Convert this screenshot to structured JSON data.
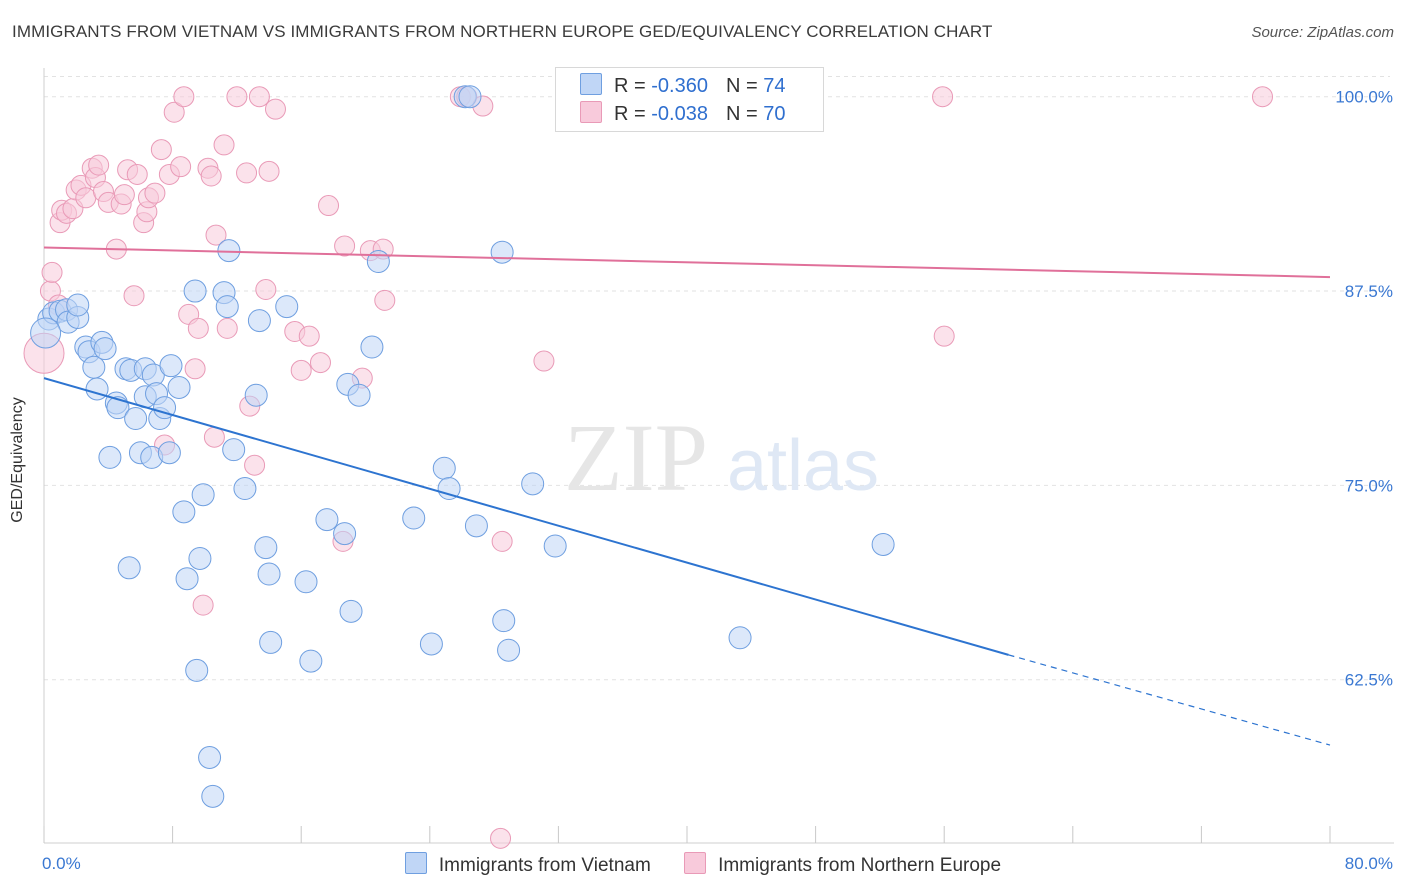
{
  "title": "IMMIGRANTS FROM VIETNAM VS IMMIGRANTS FROM NORTHERN EUROPE GED/EQUIVALENCY CORRELATION CHART",
  "source": "Source: ZipAtlas.com",
  "watermark": {
    "zip": "ZIP",
    "atlas": "atlas"
  },
  "colors": {
    "blue": "#2d74d0",
    "blue_fill": "#c0d6f6",
    "blue_stroke": "#6f9fe0",
    "pink": "#e0709a",
    "pink_fill": "#f8cadb",
    "pink_stroke": "#e99ab7",
    "tick_label": "#3a78d2",
    "grid": "#e2e2e2"
  },
  "legend": {
    "rows": [
      {
        "r_label": "R = ",
        "r_value": "-0.360",
        "n_label": "N = ",
        "n_value": "74",
        "color": "blue"
      },
      {
        "r_label": "R = ",
        "r_value": "-0.038",
        "n_label": "N = ",
        "n_value": "70",
        "color": "pink"
      }
    ]
  },
  "chart_data": {
    "type": "scatter",
    "title": "IMMIGRANTS FROM VIETNAM VS IMMIGRANTS FROM NORTHERN EUROPE GED/EQUIVALENCY CORRELATION CHART",
    "xlabel": "",
    "ylabel": "GED/Equivalency",
    "xlim": [
      0,
      80
    ],
    "ylim": [
      52,
      101.3
    ],
    "x_tick_labels": [
      "0.0%",
      "80.0%"
    ],
    "y_ticks": [
      62.5,
      75.0,
      87.5,
      100.0
    ],
    "y_tick_labels": [
      "62.5%",
      "75.0%",
      "87.5%",
      "100.0%"
    ],
    "grid": true,
    "legend_position": "top-center",
    "series": [
      {
        "name": "Immigrants from Vietnam",
        "color": "blue",
        "trend": {
          "x": [
            0,
            60
          ],
          "y": [
            81.9,
            64.1
          ],
          "dashed_to": [
            80,
            58.3
          ]
        },
        "points": [
          [
            0.3,
            85.7
          ],
          [
            0.6,
            86.1
          ],
          [
            1.0,
            86.2
          ],
          [
            1.4,
            86.3
          ],
          [
            1.5,
            85.5
          ],
          [
            2.1,
            85.8
          ],
          [
            2.1,
            86.6
          ],
          [
            2.6,
            83.9
          ],
          [
            2.8,
            83.6
          ],
          [
            3.1,
            82.6
          ],
          [
            3.3,
            81.2
          ],
          [
            3.6,
            84.2
          ],
          [
            3.8,
            83.8
          ],
          [
            4.1,
            76.8
          ],
          [
            4.5,
            80.3
          ],
          [
            4.6,
            80.0
          ],
          [
            5.1,
            82.5
          ],
          [
            5.4,
            82.4
          ],
          [
            5.3,
            69.7
          ],
          [
            5.7,
            79.3
          ],
          [
            6.0,
            77.1
          ],
          [
            6.3,
            80.7
          ],
          [
            6.3,
            82.5
          ],
          [
            6.7,
            76.8
          ],
          [
            6.8,
            82.1
          ],
          [
            7.0,
            80.9
          ],
          [
            7.2,
            79.3
          ],
          [
            7.5,
            80.0
          ],
          [
            7.8,
            77.1
          ],
          [
            7.9,
            82.7
          ],
          [
            8.4,
            81.3
          ],
          [
            8.7,
            73.3
          ],
          [
            8.9,
            69.0
          ],
          [
            9.4,
            87.5
          ],
          [
            9.5,
            63.1
          ],
          [
            9.7,
            70.3
          ],
          [
            9.9,
            74.4
          ],
          [
            10.3,
            57.5
          ],
          [
            10.5,
            55.0
          ],
          [
            11.2,
            87.4
          ],
          [
            11.4,
            86.5
          ],
          [
            11.5,
            90.1
          ],
          [
            11.8,
            77.3
          ],
          [
            12.5,
            74.8
          ],
          [
            13.2,
            80.8
          ],
          [
            13.4,
            85.6
          ],
          [
            13.8,
            71.0
          ],
          [
            14.0,
            69.3
          ],
          [
            14.1,
            64.9
          ],
          [
            15.1,
            86.5
          ],
          [
            16.3,
            68.8
          ],
          [
            16.6,
            63.7
          ],
          [
            17.6,
            72.8
          ],
          [
            18.7,
            71.9
          ],
          [
            18.9,
            81.5
          ],
          [
            19.1,
            66.9
          ],
          [
            19.6,
            80.8
          ],
          [
            20.4,
            83.9
          ],
          [
            20.8,
            89.4
          ],
          [
            23.0,
            72.9
          ],
          [
            24.1,
            64.8
          ],
          [
            24.9,
            76.1
          ],
          [
            25.2,
            74.8
          ],
          [
            26.2,
            100.0
          ],
          [
            26.5,
            100.0
          ],
          [
            26.9,
            72.4
          ],
          [
            28.5,
            90.0
          ],
          [
            28.6,
            66.3
          ],
          [
            28.9,
            64.4
          ],
          [
            30.4,
            75.1
          ],
          [
            31.8,
            71.1
          ],
          [
            43.3,
            65.2
          ],
          [
            52.2,
            71.2
          ],
          [
            0.1,
            84.8
          ]
        ],
        "radii": [
          11,
          11,
          11,
          11,
          11,
          11,
          11,
          11,
          11,
          11,
          11,
          11,
          11,
          11,
          11,
          11,
          11,
          11,
          11,
          11,
          11,
          11,
          11,
          11,
          11,
          11,
          11,
          11,
          11,
          11,
          11,
          11,
          11,
          11,
          11,
          11,
          11,
          11,
          11,
          11,
          11,
          11,
          11,
          11,
          11,
          11,
          11,
          11,
          11,
          11,
          11,
          11,
          11,
          11,
          11,
          11,
          11,
          11,
          11,
          11,
          11,
          11,
          11,
          11,
          11,
          11,
          11,
          11,
          11,
          11,
          11,
          11,
          11,
          15
        ]
      },
      {
        "name": "Immigrants from Northern Europe",
        "color": "pink",
        "trend": {
          "x": [
            0,
            80
          ],
          "y": [
            90.3,
            88.4
          ]
        },
        "points": [
          [
            0.0,
            83.5
          ],
          [
            0.4,
            87.5
          ],
          [
            0.5,
            88.7
          ],
          [
            0.9,
            86.6
          ],
          [
            1.0,
            91.9
          ],
          [
            1.1,
            92.7
          ],
          [
            1.4,
            92.5
          ],
          [
            1.8,
            92.8
          ],
          [
            2.0,
            94.0
          ],
          [
            2.3,
            94.3
          ],
          [
            2.6,
            93.5
          ],
          [
            3.0,
            95.4
          ],
          [
            3.2,
            94.8
          ],
          [
            3.4,
            95.6
          ],
          [
            3.7,
            93.9
          ],
          [
            4.0,
            93.2
          ],
          [
            4.5,
            90.2
          ],
          [
            4.8,
            93.1
          ],
          [
            5.0,
            93.7
          ],
          [
            5.2,
            95.3
          ],
          [
            5.6,
            87.2
          ],
          [
            5.8,
            95.0
          ],
          [
            6.2,
            91.9
          ],
          [
            6.4,
            92.6
          ],
          [
            6.5,
            93.5
          ],
          [
            6.9,
            93.8
          ],
          [
            7.3,
            96.6
          ],
          [
            7.5,
            77.6
          ],
          [
            7.8,
            95.0
          ],
          [
            8.1,
            99.0
          ],
          [
            8.5,
            95.5
          ],
          [
            8.7,
            100.0
          ],
          [
            9.0,
            86.0
          ],
          [
            9.4,
            82.5
          ],
          [
            9.6,
            85.1
          ],
          [
            9.9,
            67.3
          ],
          [
            10.2,
            95.4
          ],
          [
            10.4,
            94.9
          ],
          [
            10.6,
            78.1
          ],
          [
            10.7,
            91.1
          ],
          [
            11.2,
            96.9
          ],
          [
            11.4,
            85.1
          ],
          [
            12.0,
            100.0
          ],
          [
            12.6,
            95.1
          ],
          [
            12.8,
            80.1
          ],
          [
            13.1,
            76.3
          ],
          [
            13.4,
            100.0
          ],
          [
            13.8,
            87.6
          ],
          [
            14.0,
            95.2
          ],
          [
            14.4,
            99.2
          ],
          [
            15.6,
            84.9
          ],
          [
            16.0,
            82.4
          ],
          [
            16.5,
            84.6
          ],
          [
            17.2,
            82.9
          ],
          [
            17.7,
            93.0
          ],
          [
            18.6,
            71.4
          ],
          [
            18.7,
            90.4
          ],
          [
            19.8,
            81.9
          ],
          [
            20.3,
            90.1
          ],
          [
            21.1,
            90.2
          ],
          [
            21.2,
            86.9
          ],
          [
            25.9,
            100.0
          ],
          [
            26.3,
            100.0
          ],
          [
            27.3,
            99.4
          ],
          [
            28.4,
            52.3
          ],
          [
            28.5,
            71.4
          ],
          [
            31.1,
            83.0
          ],
          [
            55.9,
            100.0
          ],
          [
            56.0,
            84.6
          ],
          [
            75.8,
            100.0
          ]
        ],
        "radii": [
          20,
          10,
          10,
          10,
          10,
          10,
          10,
          10,
          10,
          10,
          10,
          10,
          10,
          10,
          10,
          10,
          10,
          10,
          10,
          10,
          10,
          10,
          10,
          10,
          10,
          10,
          10,
          10,
          10,
          10,
          10,
          10,
          10,
          10,
          10,
          10,
          10,
          10,
          10,
          10,
          10,
          10,
          10,
          10,
          10,
          10,
          10,
          10,
          10,
          10,
          10,
          10,
          10,
          10,
          10,
          10,
          10,
          10,
          10,
          10,
          10,
          10,
          10,
          10,
          10,
          10,
          10,
          10,
          10,
          10
        ]
      }
    ]
  }
}
